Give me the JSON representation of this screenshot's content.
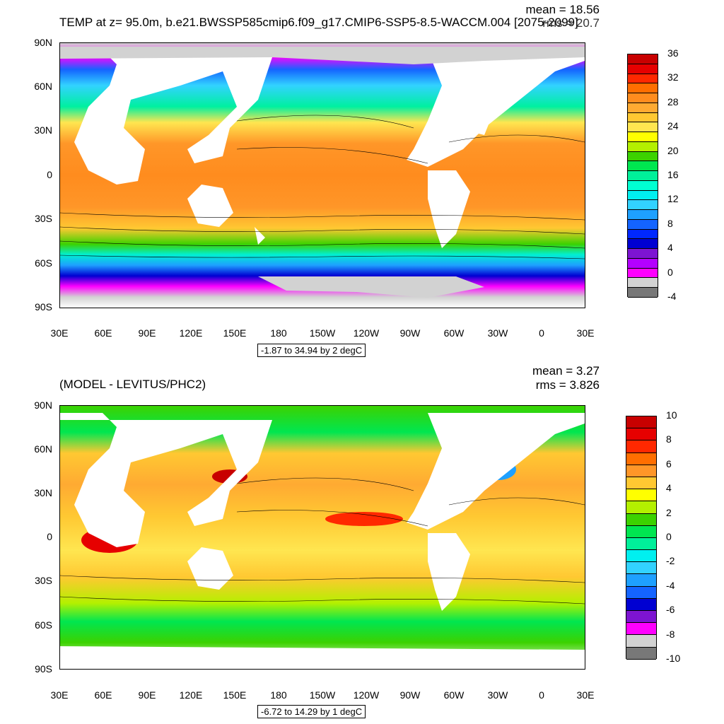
{
  "panels": [
    {
      "title": "TEMP at z=  95.0m, b.e21.BWSSP585cmip6.f09_g17.CMIP6-SSP5-8.5-WACCM.004 [2075-2099]",
      "mean": "mean = 18.56",
      "rms": "rms = 20.7",
      "info": "-1.87 to 34.94 by 2 degC",
      "colorbar": {
        "labels": [
          "36",
          "32",
          "28",
          "24",
          "20",
          "16",
          "12",
          "8",
          "4",
          "0",
          "-4"
        ],
        "colors": [
          "#c80000",
          "#e60000",
          "#ff2800",
          "#ff6e00",
          "#ff8c1e",
          "#ffaa32",
          "#ffc832",
          "#ffe650",
          "#ffff00",
          "#b4f000",
          "#3cd200",
          "#00e650",
          "#00f09a",
          "#00ffd2",
          "#00f0f0",
          "#32d2ff",
          "#1ea0ff",
          "#1464ff",
          "#0028ff",
          "#0000d2",
          "#7d14d2",
          "#b400ff",
          "#ff00ff",
          "#d2d2d2",
          "#787878"
        ]
      }
    },
    {
      "title": "(MODEL - LEVITUS/PHC2)",
      "mean": "mean = 3.27",
      "rms": "rms = 3.826",
      "info": "-6.72 to 14.29 by 1 degC",
      "colorbar": {
        "labels": [
          "10",
          "8",
          "6",
          "4",
          "2",
          "0",
          "-2",
          "-4",
          "-6",
          "-8",
          "-10"
        ],
        "colors": [
          "#c80000",
          "#e60000",
          "#ff2800",
          "#ff6e00",
          "#ff9628",
          "#ffc832",
          "#ffff00",
          "#b4f000",
          "#3cd200",
          "#00e650",
          "#00f09a",
          "#00f0f0",
          "#32d2ff",
          "#1ea0ff",
          "#1464ff",
          "#0000d2",
          "#7d14d2",
          "#ff00ff",
          "#d2d2d2",
          "#787878"
        ]
      }
    }
  ],
  "axes": {
    "y_ticks": [
      "90N",
      "60N",
      "30N",
      "0",
      "30S",
      "60S",
      "90S"
    ],
    "x_ticks": [
      "30E",
      "60E",
      "90E",
      "120E",
      "150E",
      "180",
      "150W",
      "120W",
      "90W",
      "60W",
      "30W",
      "0",
      "30E"
    ]
  }
}
